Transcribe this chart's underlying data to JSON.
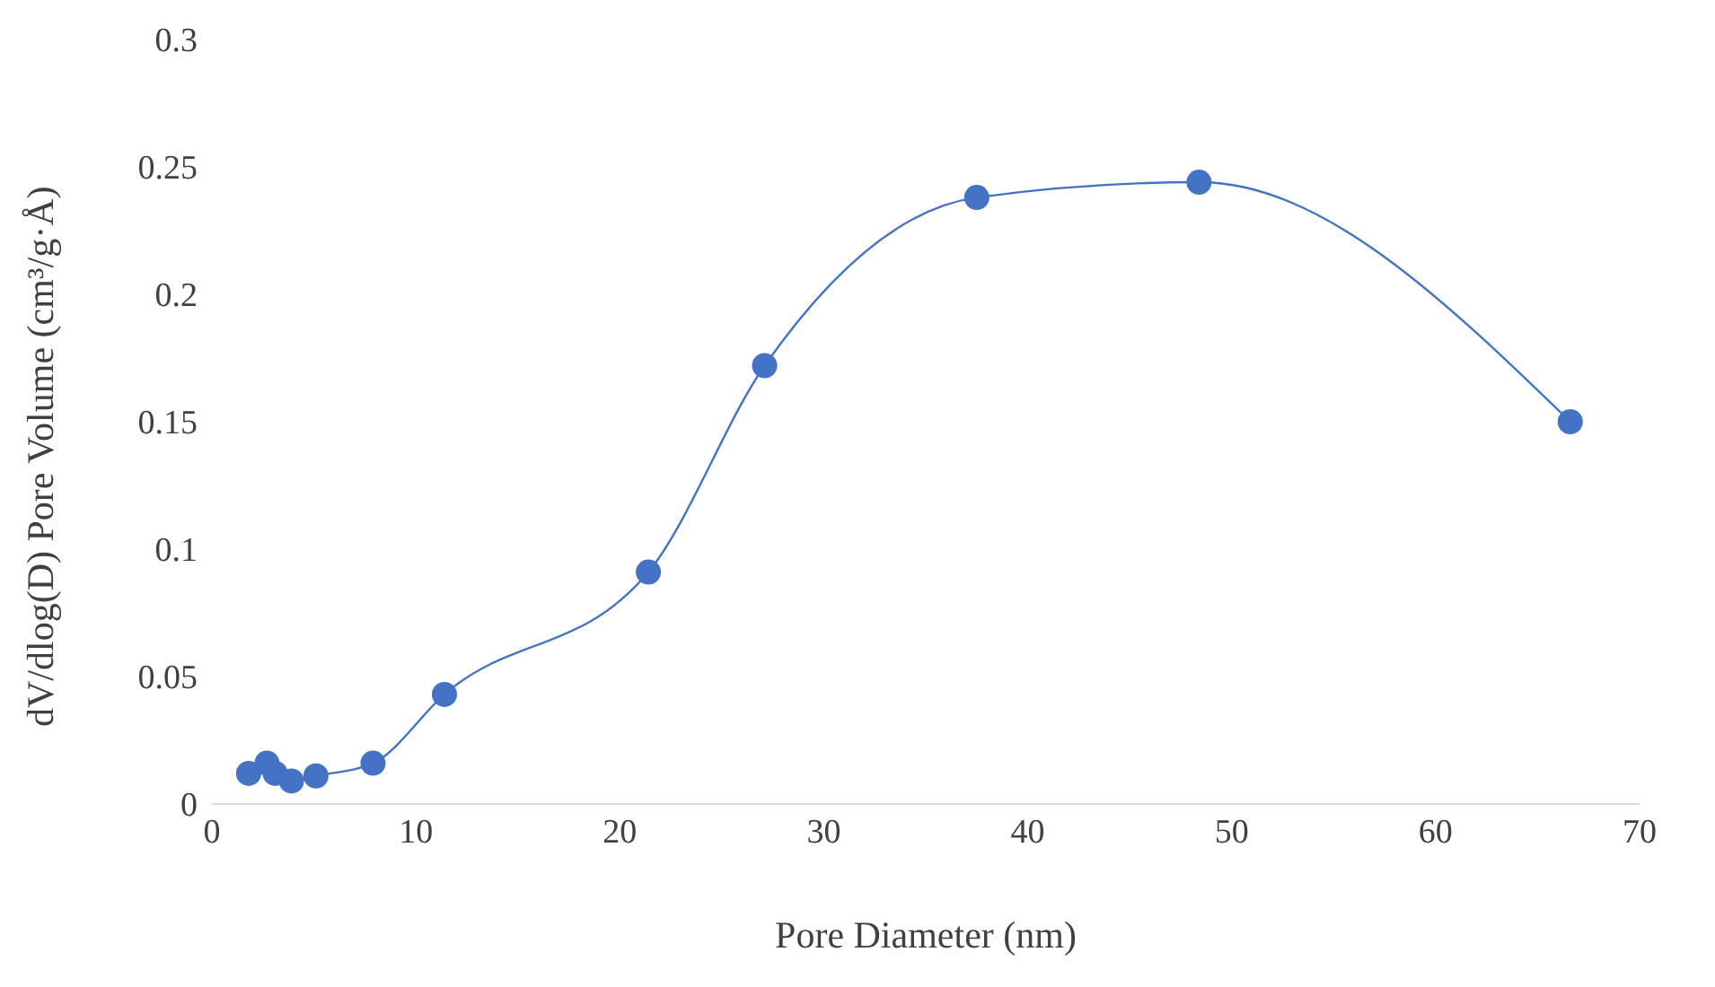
{
  "chart_data": {
    "type": "line",
    "xlabel": "Pore Diameter (nm)",
    "ylabel": "dV/dlog(D) Pore Volume (cm³/g·Å)",
    "x": [
      1.8,
      2.7,
      3.1,
      3.9,
      5.1,
      7.9,
      11.4,
      21.4,
      27.1,
      37.5,
      48.4,
      66.6
    ],
    "series": [
      {
        "color": "#4472c4",
        "values": [
          0.012,
          0.016,
          0.012,
          0.009,
          0.011,
          0.016,
          0.043,
          0.091,
          0.172,
          0.238,
          0.244,
          0.15
        ]
      }
    ],
    "xlim": [
      0,
      70
    ],
    "xticks": [
      0,
      10,
      20,
      30,
      40,
      50,
      60,
      70
    ],
    "ylim": [
      0,
      0.3
    ],
    "yticks": [
      0,
      0.05,
      0.1,
      0.15,
      0.2,
      0.25,
      0.3
    ],
    "grid": false,
    "marker": "circle",
    "line_style": "solid"
  }
}
